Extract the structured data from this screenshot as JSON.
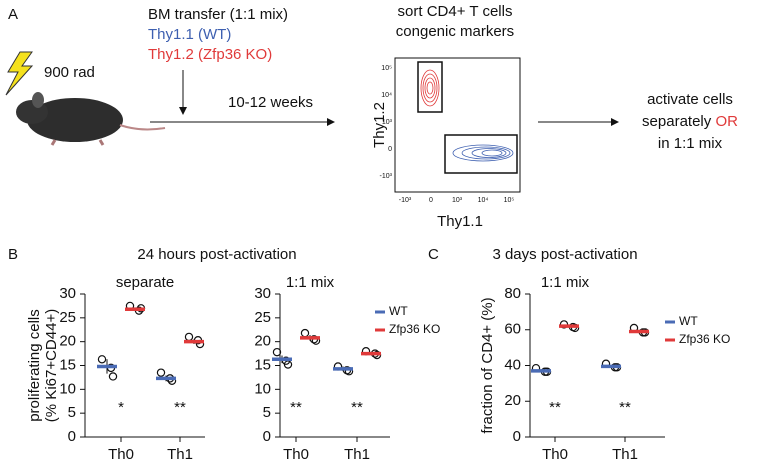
{
  "panels": {
    "A": {
      "label": "A",
      "dose": "900 rad",
      "transfer": "BM transfer (1:1 mix)",
      "wt": "Thy1.1 (WT)",
      "ko": "Thy1.2 (Zfp36 KO)",
      "time": "10-12 weeks",
      "sort_line1": "sort CD4+ T cells",
      "sort_line2": "congenic markers",
      "flow_ylabel": "Thy1.2",
      "flow_xlabel": "Thy1.1",
      "flow_yticks": [
        "10⁵",
        "10⁴",
        "10³",
        "0",
        "-10³"
      ],
      "flow_xticks": [
        "-10³",
        "0",
        "10³",
        "10⁴",
        "10⁵"
      ],
      "activate_line1": "activate cells",
      "activate_line2": "separately",
      "activate_or": "OR",
      "activate_line3": "in 1:1 mix"
    },
    "B": {
      "label": "B",
      "header": "24 hours post-activation"
    },
    "C": {
      "label": "C",
      "header": "3 days post-activation"
    }
  },
  "chart_data": [
    {
      "type": "dot",
      "title": "separate",
      "ylabel": [
        "proliferating cells",
        "(% Ki67+CD44+)"
      ],
      "categories": [
        "Th0",
        "Th1"
      ],
      "ylim": [
        0,
        30
      ],
      "yticks": [
        0,
        5,
        10,
        15,
        20,
        25,
        30
      ],
      "annotations": [
        "*",
        "**"
      ],
      "series": [
        {
          "name": "WT",
          "color": "#4a6bb5",
          "values": [
            14.8,
            12.3
          ],
          "errors": [
            1.5,
            0.6
          ],
          "points": [
            [
              16.3,
              14.5,
              12.7
            ],
            [
              13.5,
              12.3,
              11.8
            ]
          ]
        },
        {
          "name": "Zfp36 KO",
          "color": "#e03a3a",
          "values": [
            26.8,
            20.0
          ],
          "errors": [
            0.4,
            0.5
          ],
          "points": [
            [
              27.5,
              26.5,
              27.0
            ],
            [
              21.0,
              20.3,
              19.5
            ]
          ]
        }
      ]
    },
    {
      "type": "dot",
      "title": "1:1 mix",
      "categories": [
        "Th0",
        "Th1"
      ],
      "legend": true,
      "ylim": [
        0,
        30
      ],
      "yticks": [
        0,
        5,
        10,
        15,
        20,
        25,
        30
      ],
      "annotations": [
        "**",
        "**"
      ],
      "series": [
        {
          "name": "WT",
          "color": "#4a6bb5",
          "values": [
            16.3,
            14.3
          ],
          "errors": [
            0.8,
            0.5
          ],
          "points": [
            [
              17.8,
              16.0,
              15.2
            ],
            [
              14.8,
              14.0,
              13.8
            ]
          ]
        },
        {
          "name": "Zfp36 KO",
          "color": "#e03a3a",
          "values": [
            20.8,
            17.5
          ],
          "errors": [
            0.6,
            0.3
          ],
          "points": [
            [
              21.8,
              20.5,
              20.2
            ],
            [
              18.0,
              17.5,
              17.2
            ]
          ]
        }
      ]
    },
    {
      "type": "dot",
      "title": "1:1 mix",
      "ylabel": [
        "fraction of CD4+ (%)"
      ],
      "categories": [
        "Th0",
        "Th1"
      ],
      "legend": true,
      "ylim": [
        0,
        80
      ],
      "yticks": [
        0,
        20,
        40,
        60,
        80
      ],
      "annotations": [
        "**",
        "**"
      ],
      "series": [
        {
          "name": "WT",
          "color": "#4a6bb5",
          "values": [
            37.0,
            39.5
          ],
          "errors": [
            0.8,
            0.8
          ],
          "points": [
            [
              38.5,
              36.5,
              36.5
            ],
            [
              41.0,
              39.0,
              39.0
            ]
          ]
        },
        {
          "name": "Zfp36 KO",
          "color": "#e03a3a",
          "values": [
            62.0,
            59.0
          ],
          "errors": [
            0.8,
            1.0
          ],
          "points": [
            [
              63.0,
              61.5,
              61.0
            ],
            [
              61.0,
              58.5,
              58.5
            ]
          ]
        }
      ]
    }
  ]
}
